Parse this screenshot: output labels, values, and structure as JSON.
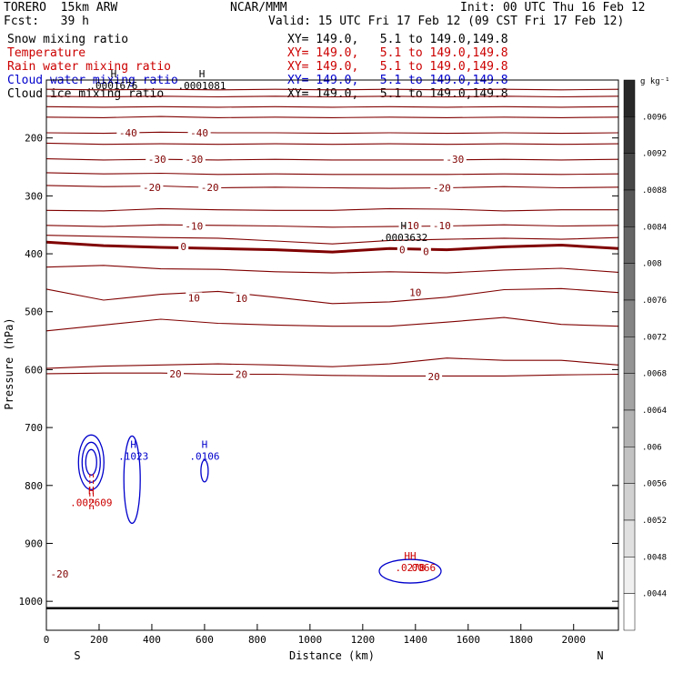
{
  "header": {
    "model": "TORERO  15km ARW",
    "center": "NCAR/MMM",
    "init": "Init: 00 UTC Thu 16 Feb 12",
    "fcst": "Fcst:   39 h",
    "valid": "Valid: 15 UTC Fri 17 Feb 12 (09 CST Fri 17 Feb 12)"
  },
  "fields": [
    {
      "name": "Snow mixing ratio",
      "xy": "XY= 149.0,   5.1 to 149.0,149.8",
      "color": "#000000"
    },
    {
      "name": "Temperature",
      "xy": "XY= 149.0,   5.1 to 149.0,149.8",
      "color": "#cc0000"
    },
    {
      "name": "Rain water mixing ratio",
      "xy": "XY= 149.0,   5.1 to 149.0,149.8",
      "color": "#cc0000"
    },
    {
      "name": "Cloud water mixing ratio",
      "xy": "XY= 149.0,   5.1 to 149.0,149.8",
      "color": "#0000cc"
    },
    {
      "name": "Cloud ice mixing ratio",
      "xy": "XY= 149.0,   5.1 to 149.0,149.8",
      "color": "#000000"
    }
  ],
  "chart_data": {
    "type": "contour",
    "xlabel": "Distance (km)",
    "ylabel": "Pressure (hPa)",
    "xlim": [
      0,
      2170
    ],
    "ylim": [
      1050,
      100
    ],
    "x_ticks": [
      0,
      200,
      400,
      600,
      800,
      1000,
      1200,
      1400,
      1600,
      1800,
      2000
    ],
    "y_ticks": [
      200,
      300,
      400,
      500,
      600,
      700,
      800,
      900,
      1000
    ],
    "left_end_label": "S",
    "right_end_label": "N",
    "temperature_contour_color": "#800000",
    "zero_contour_color": "#800000",
    "temperature_contours": [
      {
        "value": -50,
        "p": [
          116,
          117,
          116,
          117,
          116,
          117,
          116,
          117,
          116,
          117,
          116
        ]
      },
      {
        "value": -50,
        "p": [
          128,
          129,
          128,
          129,
          128,
          129,
          128,
          129,
          128,
          129,
          128
        ]
      },
      {
        "value": -45,
        "p": [
          146,
          147,
          146,
          147,
          146,
          147,
          146,
          147,
          146,
          147,
          146
        ]
      },
      {
        "value": -45,
        "p": [
          164,
          165,
          163,
          165,
          164,
          165,
          164,
          165,
          164,
          165,
          164
        ]
      },
      {
        "value": -40,
        "p": [
          191,
          192,
          190,
          191,
          191,
          192,
          191,
          192,
          191,
          192,
          191
        ]
      },
      {
        "value": -35,
        "p": [
          209,
          211,
          210,
          211,
          210,
          211,
          210,
          211,
          210,
          211,
          210
        ]
      },
      {
        "value": -30,
        "p": [
          236,
          238,
          237,
          238,
          237,
          238,
          238,
          238,
          237,
          238,
          237
        ]
      },
      {
        "value": -25,
        "p": [
          260,
          262,
          261,
          263,
          262,
          263,
          263,
          263,
          262,
          263,
          262
        ]
      },
      {
        "value": -20,
        "p": [
          282,
          284,
          283,
          286,
          285,
          286,
          287,
          286,
          284,
          286,
          285
        ]
      },
      {
        "value": -15,
        "p": [
          325,
          326,
          322,
          324,
          325,
          325,
          322,
          323,
          326,
          324,
          324
        ]
      },
      {
        "value": -10,
        "p": [
          351,
          353,
          350,
          351,
          352,
          354,
          353,
          352,
          350,
          352,
          351
        ]
      },
      {
        "value": -5,
        "p": [
          368,
          370,
          372,
          373,
          378,
          383,
          377,
          375,
          373,
          375,
          372
        ]
      },
      {
        "value": 0,
        "p": [
          380,
          386,
          389,
          391,
          393,
          397,
          391,
          393,
          388,
          385,
          391
        ]
      },
      {
        "value": 5,
        "p": [
          423,
          420,
          426,
          427,
          431,
          433,
          431,
          433,
          428,
          425,
          432
        ]
      },
      {
        "value": 10,
        "p": [
          461,
          480,
          470,
          465,
          475,
          486,
          483,
          475,
          462,
          460,
          467
        ]
      },
      {
        "value": 15,
        "p": [
          533,
          523,
          513,
          520,
          523,
          525,
          525,
          518,
          510,
          522,
          525
        ]
      },
      {
        "value": 20,
        "p": [
          598,
          594,
          592,
          590,
          592,
          595,
          590,
          580,
          584,
          584,
          592
        ]
      },
      {
        "value": 20,
        "p": [
          607,
          606,
          606,
          608,
          608,
          610,
          611,
          611,
          611,
          609,
          608
        ]
      }
    ],
    "temperature_labels": [
      {
        "text": "-40",
        "x": 310,
        "p": 191
      },
      {
        "text": "-40",
        "x": 580,
        "p": 191
      },
      {
        "text": "-30",
        "x": 420,
        "p": 237
      },
      {
        "text": "-30",
        "x": 560,
        "p": 237
      },
      {
        "text": "-30",
        "x": 1550,
        "p": 237
      },
      {
        "text": "-20",
        "x": 400,
        "p": 285
      },
      {
        "text": "-20",
        "x": 620,
        "p": 285
      },
      {
        "text": "-20",
        "x": 1500,
        "p": 286
      },
      {
        "text": "-10",
        "x": 560,
        "p": 352
      },
      {
        "text": "-10",
        "x": 1380,
        "p": 351
      },
      {
        "text": "-10",
        "x": 1500,
        "p": 351
      },
      {
        "text": "0",
        "x": 520,
        "p": 387
      },
      {
        "text": "0",
        "x": 1350,
        "p": 393
      },
      {
        "text": "0",
        "x": 1440,
        "p": 396
      },
      {
        "text": "10",
        "x": 560,
        "p": 476
      },
      {
        "text": "10",
        "x": 740,
        "p": 477
      },
      {
        "text": "10",
        "x": 1400,
        "p": 467
      },
      {
        "text": "20",
        "x": 490,
        "p": 607
      },
      {
        "text": "20",
        "x": 740,
        "p": 608
      },
      {
        "text": "20",
        "x": 1470,
        "p": 612
      },
      {
        "text": "-20",
        "x": 50,
        "p": 953
      }
    ],
    "extrema_labels": [
      {
        "mark": "H",
        "value": ".0001676",
        "x": 255,
        "p": 108,
        "color": "#000000"
      },
      {
        "mark": "H",
        "value": ".0001081",
        "x": 590,
        "p": 108,
        "color": "#000000"
      },
      {
        "mark": "H",
        "value": ".0003632",
        "x": 1355,
        "p": 370,
        "color": "#000000"
      },
      {
        "mark": "H",
        "value": ".1023",
        "x": 330,
        "p": 748,
        "color": "#0000cc"
      },
      {
        "mark": "H",
        "value": ".0106",
        "x": 600,
        "p": 748,
        "color": "#0000cc"
      },
      {
        "mark": "H",
        "value": ".002609",
        "x": 170,
        "p": 828,
        "color": "#cc0000"
      },
      {
        "mark": "HH",
        "value": ".0278",
        "x": 1380,
        "p": 940,
        "color": "#cc0000"
      },
      {
        "mark": "",
        "value": ".0066",
        "x": 1420,
        "p": 940,
        "color": "#cc0000"
      }
    ],
    "colorbar": {
      "unit": "g kg⁻¹",
      "levels": [
        ".0096",
        ".0092",
        ".0088",
        ".0084",
        ".008",
        ".0076",
        ".0072",
        ".0068",
        ".0064",
        ".006",
        ".0056",
        ".0052",
        ".0048",
        ".0044"
      ]
    }
  }
}
